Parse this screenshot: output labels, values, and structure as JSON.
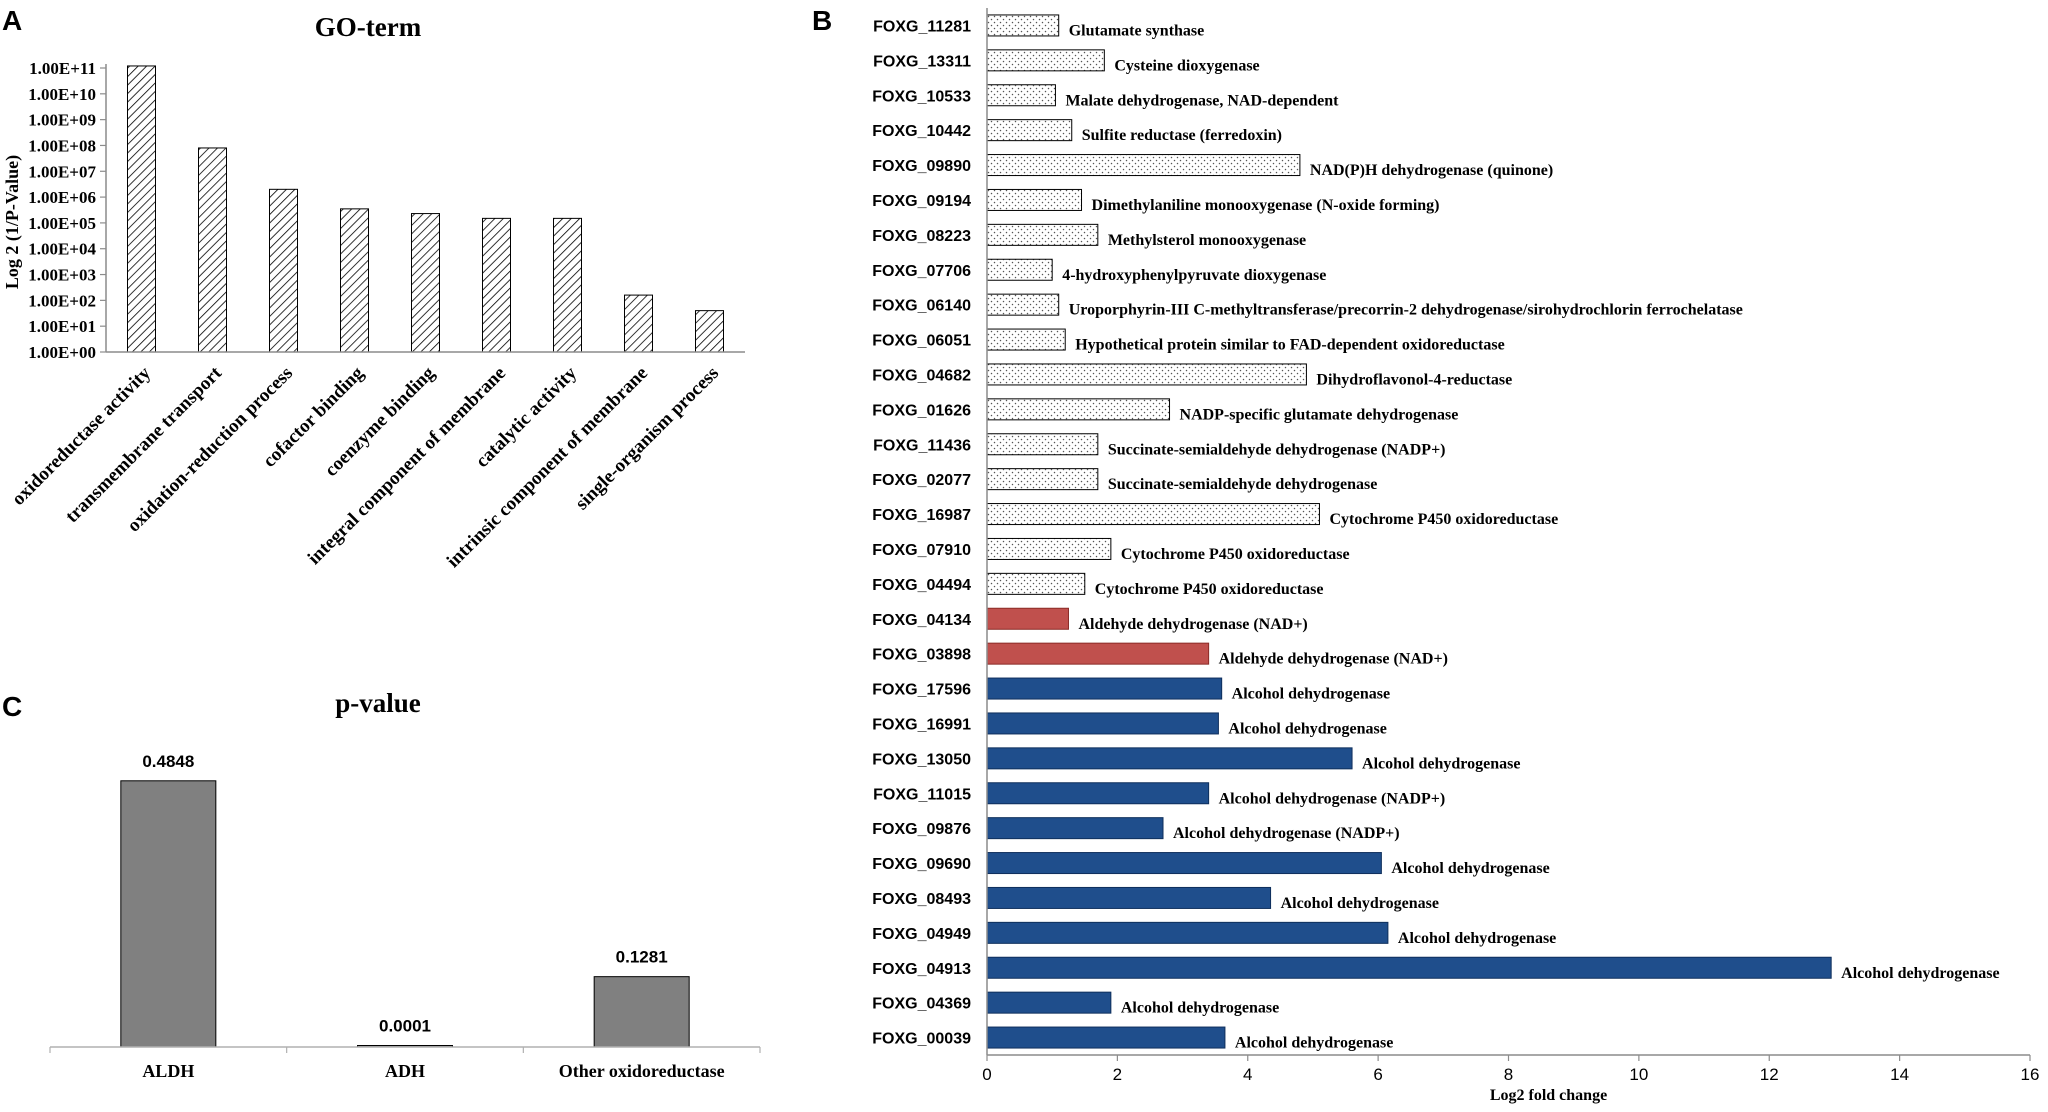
{
  "colors": {
    "hatch": "#000000",
    "dotted_fill": "#ffffff",
    "aldh_red": "#c0504d",
    "adh_blue": "#1f4e8c",
    "gray_bar": "#808080",
    "axis": "#8c8c8c"
  },
  "chart_data": [
    {
      "panel": "A",
      "type": "bar",
      "title": "GO-term",
      "ylabel": "Log 2 (1/P-Value)",
      "xlabel": "",
      "yscale": "log",
      "ylim": [
        1,
        100000000000
      ],
      "yticks": [
        "1.00E+00",
        "1.00E+01",
        "1.00E+02",
        "1.00E+03",
        "1.00E+04",
        "1.00E+05",
        "1.00E+06",
        "1.00E+07",
        "1.00E+08",
        "1.00E+09",
        "1.00E+10",
        "1.00E+11"
      ],
      "categories": [
        "oxidoreductase activity",
        "transmembrane transport",
        "oxidation-reduction process",
        "cofactor binding",
        "coenzyme binding",
        "integral component of membrane",
        "catalytic activity",
        "intrinsic component of membrane",
        "single-organism process"
      ],
      "values": [
        120000000000,
        80000000,
        2000000,
        350000,
        230000,
        150000,
        150000,
        160,
        40
      ]
    },
    {
      "panel": "B",
      "type": "bar",
      "orientation": "horizontal",
      "title": "",
      "xlabel": "Log2 fold change",
      "xlim": [
        0,
        16
      ],
      "xticks": [
        "0",
        "2",
        "4",
        "6",
        "8",
        "10",
        "12",
        "14",
        "16"
      ],
      "series": [
        {
          "id": "FOXG_11281",
          "label": "Glutamate synthase",
          "value": 1.1,
          "group": "other"
        },
        {
          "id": "FOXG_13311",
          "label": "Cysteine dioxygenase",
          "value": 1.8,
          "group": "other"
        },
        {
          "id": "FOXG_10533",
          "label": "Malate dehydrogenase, NAD-dependent",
          "value": 1.05,
          "group": "other"
        },
        {
          "id": "FOXG_10442",
          "label": "Sulfite reductase (ferredoxin)",
          "value": 1.3,
          "group": "other"
        },
        {
          "id": "FOXG_09890",
          "label": "NAD(P)H dehydrogenase (quinone)",
          "value": 4.8,
          "group": "other"
        },
        {
          "id": "FOXG_09194",
          "label": "Dimethylaniline monooxygenase (N-oxide forming)",
          "value": 1.45,
          "group": "other"
        },
        {
          "id": "FOXG_08223",
          "label": "Methylsterol monooxygenase",
          "value": 1.7,
          "group": "other"
        },
        {
          "id": "FOXG_07706",
          "label": "4-hydroxyphenylpyruvate dioxygenase",
          "value": 1.0,
          "group": "other"
        },
        {
          "id": "FOXG_06140",
          "label": "Uroporphyrin-III C-methyltransferase/precorrin-2 dehydrogenase/sirohydrochlorin ferrochelatase",
          "value": 1.1,
          "group": "other"
        },
        {
          "id": "FOXG_06051",
          "label": "Hypothetical protein similar to FAD-dependent oxidoreductase",
          "value": 1.2,
          "group": "other"
        },
        {
          "id": "FOXG_04682",
          "label": "Dihydroflavonol-4-reductase",
          "value": 4.9,
          "group": "other"
        },
        {
          "id": "FOXG_01626",
          "label": "NADP-specific glutamate dehydrogenase",
          "value": 2.8,
          "group": "other"
        },
        {
          "id": "FOXG_11436",
          "label": "Succinate-semialdehyde dehydrogenase (NADP+)",
          "value": 1.7,
          "group": "other"
        },
        {
          "id": "FOXG_02077",
          "label": "Succinate-semialdehyde dehydrogenase",
          "value": 1.7,
          "group": "other"
        },
        {
          "id": "FOXG_16987",
          "label": "Cytochrome P450 oxidoreductase",
          "value": 5.1,
          "group": "other"
        },
        {
          "id": "FOXG_07910",
          "label": "Cytochrome P450 oxidoreductase",
          "value": 1.9,
          "group": "other"
        },
        {
          "id": "FOXG_04494",
          "label": "Cytochrome P450 oxidoreductase",
          "value": 1.5,
          "group": "other"
        },
        {
          "id": "FOXG_04134",
          "label": "Aldehyde dehydrogenase (NAD+)",
          "value": 1.25,
          "group": "aldh"
        },
        {
          "id": "FOXG_03898",
          "label": "Aldehyde dehydrogenase (NAD+)",
          "value": 3.4,
          "group": "aldh"
        },
        {
          "id": "FOXG_17596",
          "label": "Alcohol dehydrogenase",
          "value": 3.6,
          "group": "adh"
        },
        {
          "id": "FOXG_16991",
          "label": "Alcohol dehydrogenase",
          "value": 3.55,
          "group": "adh"
        },
        {
          "id": "FOXG_13050",
          "label": "Alcohol dehydrogenase",
          "value": 5.6,
          "group": "adh"
        },
        {
          "id": "FOXG_11015",
          "label": "Alcohol dehydrogenase (NADP+)",
          "value": 3.4,
          "group": "adh"
        },
        {
          "id": "FOXG_09876",
          "label": "Alcohol dehydrogenase (NADP+)",
          "value": 2.7,
          "group": "adh"
        },
        {
          "id": "FOXG_09690",
          "label": "Alcohol dehydrogenase",
          "value": 6.05,
          "group": "adh"
        },
        {
          "id": "FOXG_08493",
          "label": "Alcohol dehydrogenase",
          "value": 4.35,
          "group": "adh"
        },
        {
          "id": "FOXG_04949",
          "label": "Alcohol dehydrogenase",
          "value": 6.15,
          "group": "adh"
        },
        {
          "id": "FOXG_04913",
          "label": "Alcohol  dehydrogenase",
          "value": 12.95,
          "group": "adh"
        },
        {
          "id": "FOXG_04369",
          "label": "Alcohol dehydrogenase",
          "value": 1.9,
          "group": "adh"
        },
        {
          "id": "FOXG_00039",
          "label": "Alcohol dehydrogenase",
          "value": 3.65,
          "group": "adh"
        }
      ]
    },
    {
      "panel": "C",
      "type": "bar",
      "title": "p-value",
      "xlabel": "",
      "ylabel": "",
      "ylim": [
        0,
        0.55
      ],
      "categories": [
        "ALDH",
        "ADH",
        "Other oxidoreductase"
      ],
      "values": [
        0.4848,
        0.0001,
        0.1281
      ],
      "labels": [
        "0.4848",
        "0.0001",
        "0.1281"
      ]
    }
  ],
  "panels": {
    "a": {
      "letter": "A"
    },
    "b": {
      "letter": "B"
    },
    "c": {
      "letter": "C"
    }
  }
}
